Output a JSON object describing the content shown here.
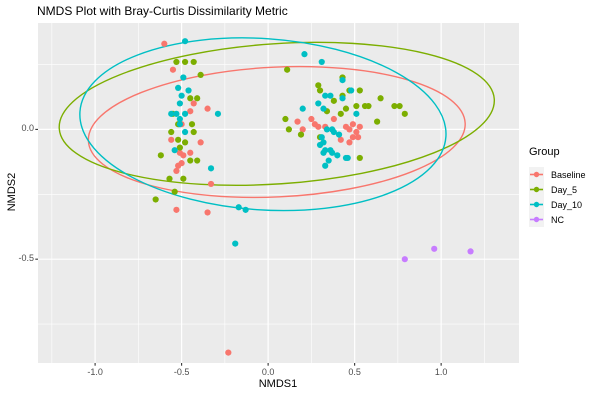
{
  "title": "NMDS Plot with Bray-Curtis Dissimilarity Metric",
  "x_axis": {
    "label": "NMDS1",
    "major_ticks": [
      {
        "value": -1.0,
        "label": "-1.0"
      },
      {
        "value": -0.5,
        "label": "-0.5"
      },
      {
        "value": 0.0,
        "label": "0.0"
      },
      {
        "value": 0.5,
        "label": "0.5"
      },
      {
        "value": 1.0,
        "label": "1.0"
      }
    ],
    "minor_ticks": [
      -1.25,
      -0.75,
      -0.25,
      0.25,
      0.75,
      1.25
    ]
  },
  "y_axis": {
    "label": "NMDS2",
    "major_ticks": [
      {
        "value": 0.0,
        "label": "0.0"
      },
      {
        "value": -0.5,
        "label": "-0.5"
      }
    ],
    "minor_ticks": [
      0.25,
      -0.25,
      -0.75
    ]
  },
  "legend": {
    "title": "Group",
    "position": "right",
    "items": [
      {
        "label": "Baseline",
        "color": "#F8766D"
      },
      {
        "label": "Day_5",
        "color": "#7CAE00"
      },
      {
        "label": "Day_10",
        "color": "#00BFC4"
      },
      {
        "label": "NC",
        "color": "#C77CFF"
      }
    ]
  },
  "panel": {
    "bg": "#EBEBEB",
    "grid": "#FFFFFF",
    "tick_color": "#333333"
  },
  "chart_data": {
    "type": "scatter",
    "title": "NMDS Plot with Bray-Curtis Dissimilarity Metric",
    "xlabel": "NMDS1",
    "ylabel": "NMDS2",
    "xlim": [
      -1.33,
      1.45
    ],
    "ylim": [
      -0.9,
      0.41
    ],
    "grid": true,
    "legend_position": "right",
    "series": [
      {
        "name": "Baseline",
        "color": "#F8766D",
        "ellipse": {
          "cx": 0.05,
          "cy": -0.01,
          "rx": 1.09,
          "ry": 0.25,
          "angle_deg": -2.7
        },
        "points": [
          [
            -0.6,
            0.33
          ],
          [
            -0.55,
            0.23
          ],
          [
            -0.43,
            0.1
          ],
          [
            -0.45,
            0.07
          ],
          [
            -0.35,
            0.08
          ],
          [
            -0.5,
            0.02
          ],
          [
            -0.56,
            -0.04
          ],
          [
            -0.39,
            -0.05
          ],
          [
            -0.51,
            -0.09
          ],
          [
            -0.49,
            -0.1
          ],
          [
            -0.45,
            -0.09
          ],
          [
            -0.52,
            -0.14
          ],
          [
            -0.5,
            -0.13
          ],
          [
            -0.53,
            -0.16
          ],
          [
            -0.33,
            -0.21
          ],
          [
            -0.53,
            -0.31
          ],
          [
            -0.35,
            -0.32
          ],
          [
            -0.23,
            -0.86
          ],
          [
            0.17,
            0.03
          ],
          [
            0.25,
            0.04
          ],
          [
            0.27,
            0.02
          ],
          [
            0.29,
            0.01
          ],
          [
            0.2,
            0.0
          ],
          [
            0.38,
            0.04
          ],
          [
            0.45,
            0.01
          ],
          [
            0.47,
            0.0
          ],
          [
            0.49,
            0.02
          ],
          [
            0.51,
            -0.01
          ],
          [
            0.53,
            0.01
          ],
          [
            0.49,
            -0.03
          ],
          [
            0.52,
            -0.03
          ],
          [
            0.47,
            -0.05
          ],
          [
            0.42,
            -0.04
          ],
          [
            0.33,
            0.01
          ]
        ]
      },
      {
        "name": "Day_5",
        "color": "#7CAE00",
        "ellipse": {
          "cx": 0.05,
          "cy": 0.06,
          "rx": 1.26,
          "ry": 0.27,
          "angle_deg": -3.9
        },
        "points": [
          [
            -0.53,
            0.26
          ],
          [
            -0.48,
            0.26
          ],
          [
            -0.43,
            0.26
          ],
          [
            -0.39,
            0.21
          ],
          [
            -0.45,
            0.12
          ],
          [
            -0.41,
            0.12
          ],
          [
            -0.55,
            0.06
          ],
          [
            -0.52,
            0.02
          ],
          [
            -0.44,
            0.02
          ],
          [
            -0.56,
            -0.01
          ],
          [
            -0.43,
            -0.01
          ],
          [
            -0.52,
            -0.04
          ],
          [
            -0.48,
            -0.05
          ],
          [
            -0.51,
            -0.07
          ],
          [
            -0.62,
            -0.1
          ],
          [
            -0.45,
            -0.12
          ],
          [
            -0.41,
            -0.12
          ],
          [
            -0.49,
            -0.19
          ],
          [
            -0.57,
            -0.19
          ],
          [
            -0.54,
            -0.24
          ],
          [
            -0.65,
            -0.27
          ],
          [
            0.11,
            0.23
          ],
          [
            0.43,
            0.2
          ],
          [
            0.29,
            0.17
          ],
          [
            0.3,
            0.15
          ],
          [
            0.47,
            0.15
          ],
          [
            0.53,
            0.15
          ],
          [
            0.43,
            0.13
          ],
          [
            0.38,
            0.11
          ],
          [
            0.58,
            0.09
          ],
          [
            0.45,
            0.08
          ],
          [
            0.51,
            0.09
          ],
          [
            0.56,
            0.09
          ],
          [
            0.34,
            0.07
          ],
          [
            0.42,
            0.06
          ],
          [
            0.63,
            0.03
          ],
          [
            0.1,
            0.04
          ],
          [
            0.12,
            0.0
          ],
          [
            0.19,
            -0.02
          ],
          [
            0.3,
            -0.03
          ],
          [
            0.53,
            -0.11
          ],
          [
            0.65,
            0.12
          ],
          [
            0.73,
            0.09
          ],
          [
            0.76,
            0.09
          ],
          [
            0.79,
            0.06
          ]
        ]
      },
      {
        "name": "Day_10",
        "color": "#00BFC4",
        "ellipse": {
          "cx": -0.03,
          "cy": 0.02,
          "rx": 1.06,
          "ry": 0.33,
          "angle_deg": 3.9
        },
        "points": [
          [
            -0.48,
            0.34
          ],
          [
            -0.49,
            0.2
          ],
          [
            -0.52,
            0.16
          ],
          [
            -0.46,
            0.15
          ],
          [
            -0.5,
            0.13
          ],
          [
            -0.51,
            0.1
          ],
          [
            -0.56,
            0.06
          ],
          [
            -0.53,
            0.06
          ],
          [
            -0.48,
            0.06
          ],
          [
            -0.29,
            0.06
          ],
          [
            -0.51,
            0.04
          ],
          [
            -0.51,
            0.02
          ],
          [
            -0.48,
            -0.01
          ],
          [
            -0.54,
            -0.08
          ],
          [
            -0.33,
            -0.15
          ],
          [
            -0.17,
            -0.3
          ],
          [
            -0.13,
            -0.31
          ],
          [
            -0.19,
            -0.44
          ],
          [
            0.21,
            0.29
          ],
          [
            0.31,
            0.26
          ],
          [
            0.43,
            0.19
          ],
          [
            0.48,
            0.15
          ],
          [
            0.36,
            0.13
          ],
          [
            0.33,
            0.13
          ],
          [
            0.43,
            0.12
          ],
          [
            0.29,
            0.1
          ],
          [
            0.2,
            0.08
          ],
          [
            0.32,
            0.08
          ],
          [
            0.51,
            0.06
          ],
          [
            0.34,
            0.0
          ],
          [
            0.37,
            0.0
          ],
          [
            0.38,
            -0.01
          ],
          [
            0.41,
            -0.02
          ],
          [
            0.31,
            -0.03
          ],
          [
            0.32,
            -0.05
          ],
          [
            0.3,
            -0.06
          ],
          [
            0.33,
            -0.08
          ],
          [
            0.36,
            -0.08
          ],
          [
            0.37,
            -0.09
          ],
          [
            0.32,
            -0.09
          ],
          [
            0.4,
            -0.1
          ],
          [
            0.45,
            -0.11
          ],
          [
            0.46,
            -0.11
          ],
          [
            0.35,
            -0.12
          ],
          [
            0.33,
            -0.14
          ]
        ]
      },
      {
        "name": "NC",
        "color": "#C77CFF",
        "ellipse": null,
        "points": [
          [
            0.79,
            -0.5
          ],
          [
            0.96,
            -0.46
          ],
          [
            1.17,
            -0.47
          ]
        ]
      }
    ]
  }
}
